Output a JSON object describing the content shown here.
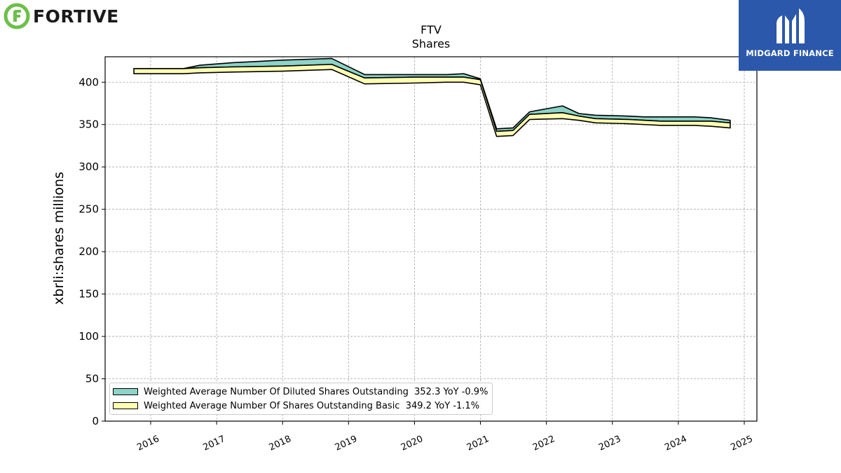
{
  "branding": {
    "company_name": "FORTIVE",
    "publisher_name": "MIDGARD FINANCE"
  },
  "colors": {
    "diluted_fill": "#8dd3c7",
    "basic_fill": "#ffffb3",
    "fortive_green": "#6cc04a",
    "midgard_blue": "#2b58ab"
  },
  "chart_data": {
    "type": "area",
    "title": "FTV",
    "subtitle": "Shares",
    "xlabel": "",
    "ylabel": "xbrli:shares millions",
    "ylim": [
      0,
      430
    ],
    "yticks": [
      0,
      50,
      100,
      150,
      200,
      250,
      300,
      350,
      400
    ],
    "xticks": [
      "2016",
      "2017",
      "2018",
      "2019",
      "2020",
      "2021",
      "2022",
      "2023",
      "2024",
      "2025"
    ],
    "grid": true,
    "legend_position": "bottom-left",
    "series": [
      {
        "name": "Weighted Average Number Of Diluted Shares Outstanding",
        "legend_suffix": "352.3 YoY -0.9%",
        "color": "#8dd3c7",
        "points": [
          [
            "2015-09-30",
            416
          ],
          [
            "2016-06-30",
            416
          ],
          [
            "2016-09-30",
            420
          ],
          [
            "2017-03-31",
            423
          ],
          [
            "2017-12-31",
            426
          ],
          [
            "2018-09-30",
            428
          ],
          [
            "2019-03-31",
            409
          ],
          [
            "2019-12-31",
            409
          ],
          [
            "2020-06-30",
            409
          ],
          [
            "2020-09-30",
            410
          ],
          [
            "2020-12-31",
            404
          ],
          [
            "2021-03-31",
            345
          ],
          [
            "2021-06-30",
            346
          ],
          [
            "2021-09-30",
            365
          ],
          [
            "2022-03-31",
            372
          ],
          [
            "2022-06-30",
            363
          ],
          [
            "2022-09-30",
            361
          ],
          [
            "2023-03-31",
            360
          ],
          [
            "2023-06-30",
            359
          ],
          [
            "2023-09-30",
            359
          ],
          [
            "2024-03-31",
            359
          ],
          [
            "2024-06-30",
            358
          ],
          [
            "2024-10-15",
            355
          ]
        ]
      },
      {
        "name": "Weighted Average Number Of Shares Outstanding Basic",
        "legend_suffix": "349.2 YoY -1.1%",
        "color": "#ffffb3",
        "points": [
          [
            "2015-09-30",
            416
          ],
          [
            "2016-06-30",
            416
          ],
          [
            "2016-09-30",
            417
          ],
          [
            "2017-03-31",
            418
          ],
          [
            "2017-12-31",
            419
          ],
          [
            "2018-09-30",
            421
          ],
          [
            "2019-03-31",
            405
          ],
          [
            "2019-12-31",
            406
          ],
          [
            "2020-06-30",
            406
          ],
          [
            "2020-09-30",
            406
          ],
          [
            "2020-12-31",
            403
          ],
          [
            "2021-03-31",
            342
          ],
          [
            "2021-06-30",
            343
          ],
          [
            "2021-09-30",
            362
          ],
          [
            "2022-03-31",
            364
          ],
          [
            "2022-06-30",
            360
          ],
          [
            "2022-09-30",
            357
          ],
          [
            "2023-03-31",
            356
          ],
          [
            "2023-06-30",
            355
          ],
          [
            "2023-09-30",
            354
          ],
          [
            "2024-03-31",
            354
          ],
          [
            "2024-06-30",
            354
          ],
          [
            "2024-10-15",
            352
          ]
        ],
        "band_lower": [
          [
            "2015-09-30",
            410
          ],
          [
            "2016-06-30",
            410
          ],
          [
            "2016-09-30",
            411
          ],
          [
            "2017-03-31",
            412
          ],
          [
            "2017-12-31",
            413
          ],
          [
            "2018-09-30",
            415
          ],
          [
            "2019-03-31",
            398
          ],
          [
            "2019-12-31",
            399
          ],
          [
            "2020-06-30",
            400
          ],
          [
            "2020-09-30",
            400
          ],
          [
            "2020-12-31",
            397
          ],
          [
            "2021-03-31",
            336
          ],
          [
            "2021-06-30",
            337
          ],
          [
            "2021-09-30",
            356
          ],
          [
            "2022-03-31",
            357
          ],
          [
            "2022-06-30",
            355
          ],
          [
            "2022-09-30",
            352
          ],
          [
            "2023-03-31",
            351
          ],
          [
            "2023-06-30",
            350
          ],
          [
            "2023-09-30",
            349
          ],
          [
            "2024-03-31",
            349
          ],
          [
            "2024-06-30",
            348
          ],
          [
            "2024-10-15",
            346
          ]
        ]
      }
    ]
  }
}
